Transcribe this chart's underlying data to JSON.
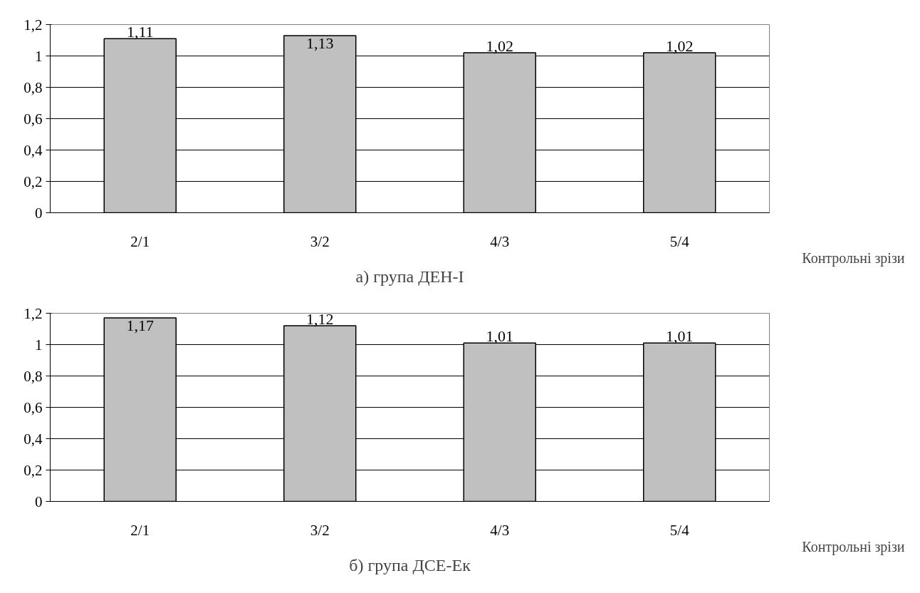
{
  "chart_data": [
    {
      "type": "bar",
      "title": "а) група ДЕН-І",
      "xlabel": "Контрольні зрізи",
      "categories": [
        "2/1",
        "3/2",
        "4/3",
        "5/4"
      ],
      "values": [
        1.11,
        1.13,
        1.02,
        1.02
      ],
      "color": "#c0c0c0",
      "value_labels": [
        "1,11",
        "1,13",
        "1,02",
        "1,02"
      ],
      "ylim": [
        0,
        1.2
      ],
      "yticks": [
        {
          "value": 0,
          "label": "0"
        },
        {
          "value": 0.2,
          "label": "0,2"
        },
        {
          "value": 0.4,
          "label": "0,4"
        },
        {
          "value": 0.6,
          "label": "0,6"
        },
        {
          "value": 0.8,
          "label": "0,8"
        },
        {
          "value": 1,
          "label": "1"
        },
        {
          "value": 1.2,
          "label": "1,2"
        }
      ],
      "grid": "y"
    },
    {
      "type": "bar",
      "title": "б) група ДСЕ-Ек",
      "xlabel": "Контрольні зрізи",
      "categories": [
        "2/1",
        "3/2",
        "4/3",
        "5/4"
      ],
      "values": [
        1.17,
        1.12,
        1.01,
        1.01
      ],
      "color": "#c0c0c0",
      "value_labels": [
        "1,17",
        "1,12",
        "1,01",
        "1,01"
      ],
      "ylim": [
        0,
        1.2
      ],
      "yticks": [
        {
          "value": 0,
          "label": "0"
        },
        {
          "value": 0.2,
          "label": "0,2"
        },
        {
          "value": 0.4,
          "label": "0,4"
        },
        {
          "value": 0.6,
          "label": "0,6"
        },
        {
          "value": 0.8,
          "label": "0,8"
        },
        {
          "value": 1,
          "label": "1"
        },
        {
          "value": 1.2,
          "label": "1,2"
        }
      ],
      "grid": "y"
    }
  ]
}
